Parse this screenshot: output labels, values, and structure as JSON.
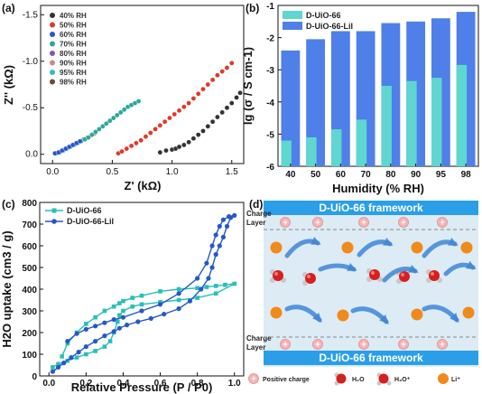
{
  "chart_data": [
    {
      "panel": "(a)",
      "type": "scatter",
      "xlabel": "Z' (kΩ)",
      "ylabel": "Z'' (kΩ)",
      "xlim": [
        -0.1,
        1.6
      ],
      "ylim": [
        0.1,
        -1.6
      ],
      "y_inverted": true,
      "xticks": [
        "0.0",
        "0.5",
        "1.0",
        "1.5"
      ],
      "yticks": [
        "-1.5",
        "-1.0",
        "-0.5",
        "0.0"
      ],
      "legend_position": "top-left",
      "series": [
        {
          "name": "40% RH",
          "color": "#333333",
          "x": [
            0.9,
            0.95,
            1.0,
            1.03,
            1.06,
            1.1,
            1.14,
            1.18,
            1.22,
            1.26,
            1.3,
            1.34,
            1.38,
            1.42,
            1.46,
            1.5,
            1.54,
            1.57
          ],
          "y": [
            -0.02,
            -0.04,
            -0.05,
            -0.06,
            -0.08,
            -0.1,
            -0.13,
            -0.17,
            -0.21,
            -0.25,
            -0.3,
            -0.35,
            -0.4,
            -0.45,
            -0.5,
            -0.55,
            -0.61,
            -0.66
          ]
        },
        {
          "name": "50% RH",
          "color": "#e0392b",
          "x": [
            0.55,
            0.58,
            0.62,
            0.66,
            0.7,
            0.74,
            0.78,
            0.82,
            0.86,
            0.9,
            0.94,
            0.98,
            1.02,
            1.06,
            1.1,
            1.14,
            1.18,
            1.22,
            1.26,
            1.3,
            1.34,
            1.38,
            1.42,
            1.46,
            1.5
          ],
          "y": [
            -0.01,
            -0.03,
            -0.06,
            -0.09,
            -0.12,
            -0.15,
            -0.19,
            -0.23,
            -0.27,
            -0.31,
            -0.35,
            -0.39,
            -0.43,
            -0.47,
            -0.51,
            -0.55,
            -0.6,
            -0.65,
            -0.7,
            -0.75,
            -0.8,
            -0.85,
            -0.89,
            -0.93,
            -0.98
          ]
        },
        {
          "name": "60% RH",
          "color": "#2a55c8",
          "x": [
            0.02,
            0.05,
            0.08,
            0.11,
            0.14,
            0.17,
            0.2,
            0.23
          ],
          "y": [
            -0.01,
            -0.02,
            -0.04,
            -0.06,
            -0.08,
            -0.1,
            -0.12,
            -0.14
          ]
        },
        {
          "name": "70% RH",
          "color": "#2aa89a",
          "x": [
            0.03,
            0.06,
            0.09,
            0.12,
            0.15,
            0.18,
            0.21,
            0.24,
            0.27,
            0.3,
            0.33,
            0.36,
            0.39,
            0.42,
            0.45,
            0.48,
            0.51,
            0.54,
            0.57,
            0.6,
            0.63,
            0.66,
            0.69,
            0.72
          ],
          "y": [
            -0.01,
            -0.02,
            -0.04,
            -0.06,
            -0.08,
            -0.1,
            -0.12,
            -0.14,
            -0.16,
            -0.18,
            -0.21,
            -0.24,
            -0.27,
            -0.3,
            -0.33,
            -0.36,
            -0.39,
            -0.42,
            -0.45,
            -0.48,
            -0.51,
            -0.53,
            -0.55,
            -0.57
          ]
        },
        {
          "name": "80% RH",
          "color": "#7a56c0",
          "x": [
            0.02,
            0.05,
            0.08,
            0.11,
            0.14,
            0.17,
            0.2,
            0.23,
            0.26
          ],
          "y": [
            -0.01,
            -0.02,
            -0.04,
            -0.06,
            -0.08,
            -0.1,
            -0.12,
            -0.14,
            -0.16
          ]
        },
        {
          "name": "90% RH",
          "color": "#c98a8a",
          "x": [
            0.02,
            0.05,
            0.08,
            0.11,
            0.14,
            0.17,
            0.2,
            0.23,
            0.26,
            0.29,
            0.32,
            0.35
          ],
          "y": [
            -0.01,
            -0.02,
            -0.04,
            -0.06,
            -0.08,
            -0.1,
            -0.12,
            -0.14,
            -0.16,
            -0.18,
            -0.2,
            -0.22
          ]
        },
        {
          "name": "95% RH",
          "color": "#3ab6c9",
          "x": [
            0.02,
            0.05,
            0.08,
            0.11,
            0.14,
            0.17,
            0.2,
            0.23,
            0.26,
            0.29,
            0.32
          ],
          "y": [
            -0.01,
            -0.02,
            -0.04,
            -0.06,
            -0.08,
            -0.1,
            -0.12,
            -0.14,
            -0.16,
            -0.18,
            -0.2
          ]
        },
        {
          "name": "98% RH",
          "color": "#6b4a3a",
          "x": [
            0.02,
            0.05,
            0.08,
            0.11,
            0.14,
            0.17,
            0.2,
            0.23,
            0.26,
            0.29
          ],
          "y": [
            -0.01,
            -0.02,
            -0.04,
            -0.06,
            -0.08,
            -0.1,
            -0.12,
            -0.14,
            -0.16,
            -0.18
          ]
        }
      ]
    },
    {
      "panel": "(b)",
      "type": "bar",
      "xlabel": "Humidity (% RH)",
      "ylabel": "lg (σ / S cm-1)",
      "ylim": [
        -6,
        -1
      ],
      "yticks": [
        "-6",
        "-5",
        "-4",
        "-3",
        "-2",
        "-1"
      ],
      "categories": [
        "40",
        "50",
        "60",
        "70",
        "80",
        "90",
        "95",
        "98"
      ],
      "legend_position": "top-left",
      "series": [
        {
          "name": "D-UiO-66",
          "color": "#5fd6cf",
          "values": [
            -5.2,
            -5.1,
            -4.85,
            -4.55,
            -3.5,
            -3.35,
            -3.25,
            -2.85
          ]
        },
        {
          "name": "D-UiO-66-LiI",
          "color": "#4f7fe8",
          "values": [
            -2.4,
            -2.05,
            -1.8,
            -1.8,
            -1.55,
            -1.5,
            -1.4,
            -1.2
          ]
        }
      ]
    },
    {
      "panel": "(c)",
      "type": "line",
      "xlabel": "Relative Pressure (P / P0)",
      "ylabel": "H2O uptake (cm3 / g)",
      "xlim": [
        -0.05,
        1.05
      ],
      "ylim": [
        0,
        800
      ],
      "xticks": [
        "0.0",
        "0.2",
        "0.4",
        "0.6",
        "0.8",
        "1.0"
      ],
      "yticks": [
        "0",
        "100",
        "200",
        "300",
        "400",
        "500",
        "600",
        "700",
        "800"
      ],
      "legend_position": "top-left",
      "series": [
        {
          "name": "D-UiO-66",
          "color": "#28bfb6",
          "x": [
            0.02,
            0.05,
            0.1,
            0.15,
            0.2,
            0.25,
            0.3,
            0.33,
            0.35,
            0.37,
            0.38,
            0.4,
            0.45,
            0.5,
            0.6,
            0.7,
            0.8,
            0.9,
            1.0,
            0.95,
            0.9,
            0.85,
            0.8,
            0.7,
            0.6,
            0.5,
            0.45,
            0.4,
            0.38,
            0.35,
            0.3,
            0.25,
            0.2,
            0.15,
            0.1,
            0.07
          ],
          "y": [
            40,
            55,
            70,
            85,
            100,
            115,
            135,
            160,
            200,
            250,
            280,
            300,
            320,
            330,
            340,
            350,
            360,
            380,
            425,
            420,
            415,
            410,
            405,
            400,
            390,
            370,
            360,
            345,
            335,
            320,
            300,
            270,
            240,
            200,
            150,
            90
          ]
        },
        {
          "name": "D-UiO-66-LiI",
          "color": "#2558c8",
          "x": [
            0.02,
            0.05,
            0.08,
            0.12,
            0.16,
            0.2,
            0.25,
            0.3,
            0.35,
            0.38,
            0.42,
            0.48,
            0.55,
            0.62,
            0.7,
            0.76,
            0.82,
            0.86,
            0.88,
            0.9,
            0.92,
            0.94,
            0.96,
            0.98,
            1.0,
            0.97,
            0.94,
            0.92,
            0.9,
            0.88,
            0.85,
            0.8,
            0.7,
            0.6,
            0.5,
            0.4,
            0.35,
            0.3,
            0.25,
            0.2,
            0.15,
            0.1
          ],
          "y": [
            20,
            40,
            60,
            85,
            110,
            135,
            160,
            185,
            205,
            220,
            235,
            250,
            265,
            285,
            310,
            345,
            400,
            450,
            500,
            560,
            600,
            640,
            690,
            730,
            740,
            735,
            720,
            690,
            650,
            600,
            520,
            450,
            380,
            330,
            300,
            270,
            260,
            245,
            230,
            215,
            195,
            160
          ]
        }
      ]
    },
    {
      "panel": "(d)",
      "type": "diagram",
      "top_banner": "D-UiO-66 framework",
      "bottom_banner": "D-UiO-66 framework",
      "charge_layer_label": "Charge Layer",
      "legend": [
        "Positive charge",
        "H2O",
        "H3O+",
        "Li+"
      ]
    }
  ],
  "panel_labels": [
    "(a)",
    "(b)",
    "(c)",
    "(d)"
  ]
}
